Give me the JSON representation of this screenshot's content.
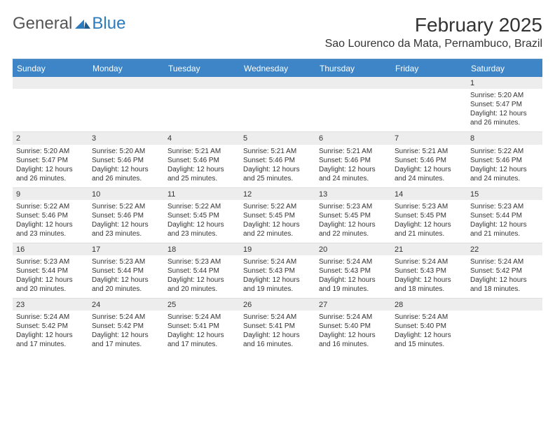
{
  "brand": {
    "general": "General",
    "blue": "Blue"
  },
  "header": {
    "title": "February 2025",
    "location": "Sao Lourenco da Mata, Pernambuco, Brazil"
  },
  "colors": {
    "header_bg": "#3d85c6",
    "header_text": "#ffffff",
    "daynum_bg": "#ededed",
    "divider": "#4a8bc6",
    "body_text": "#333333"
  },
  "dayNames": [
    "Sunday",
    "Monday",
    "Tuesday",
    "Wednesday",
    "Thursday",
    "Friday",
    "Saturday"
  ],
  "weeks": [
    [
      null,
      null,
      null,
      null,
      null,
      null,
      {
        "n": "1",
        "sr": "Sunrise: 5:20 AM",
        "ss": "Sunset: 5:47 PM",
        "dl1": "Daylight: 12 hours",
        "dl2": "and 26 minutes."
      }
    ],
    [
      {
        "n": "2",
        "sr": "Sunrise: 5:20 AM",
        "ss": "Sunset: 5:47 PM",
        "dl1": "Daylight: 12 hours",
        "dl2": "and 26 minutes."
      },
      {
        "n": "3",
        "sr": "Sunrise: 5:20 AM",
        "ss": "Sunset: 5:46 PM",
        "dl1": "Daylight: 12 hours",
        "dl2": "and 26 minutes."
      },
      {
        "n": "4",
        "sr": "Sunrise: 5:21 AM",
        "ss": "Sunset: 5:46 PM",
        "dl1": "Daylight: 12 hours",
        "dl2": "and 25 minutes."
      },
      {
        "n": "5",
        "sr": "Sunrise: 5:21 AM",
        "ss": "Sunset: 5:46 PM",
        "dl1": "Daylight: 12 hours",
        "dl2": "and 25 minutes."
      },
      {
        "n": "6",
        "sr": "Sunrise: 5:21 AM",
        "ss": "Sunset: 5:46 PM",
        "dl1": "Daylight: 12 hours",
        "dl2": "and 24 minutes."
      },
      {
        "n": "7",
        "sr": "Sunrise: 5:21 AM",
        "ss": "Sunset: 5:46 PM",
        "dl1": "Daylight: 12 hours",
        "dl2": "and 24 minutes."
      },
      {
        "n": "8",
        "sr": "Sunrise: 5:22 AM",
        "ss": "Sunset: 5:46 PM",
        "dl1": "Daylight: 12 hours",
        "dl2": "and 24 minutes."
      }
    ],
    [
      {
        "n": "9",
        "sr": "Sunrise: 5:22 AM",
        "ss": "Sunset: 5:46 PM",
        "dl1": "Daylight: 12 hours",
        "dl2": "and 23 minutes."
      },
      {
        "n": "10",
        "sr": "Sunrise: 5:22 AM",
        "ss": "Sunset: 5:46 PM",
        "dl1": "Daylight: 12 hours",
        "dl2": "and 23 minutes."
      },
      {
        "n": "11",
        "sr": "Sunrise: 5:22 AM",
        "ss": "Sunset: 5:45 PM",
        "dl1": "Daylight: 12 hours",
        "dl2": "and 23 minutes."
      },
      {
        "n": "12",
        "sr": "Sunrise: 5:22 AM",
        "ss": "Sunset: 5:45 PM",
        "dl1": "Daylight: 12 hours",
        "dl2": "and 22 minutes."
      },
      {
        "n": "13",
        "sr": "Sunrise: 5:23 AM",
        "ss": "Sunset: 5:45 PM",
        "dl1": "Daylight: 12 hours",
        "dl2": "and 22 minutes."
      },
      {
        "n": "14",
        "sr": "Sunrise: 5:23 AM",
        "ss": "Sunset: 5:45 PM",
        "dl1": "Daylight: 12 hours",
        "dl2": "and 21 minutes."
      },
      {
        "n": "15",
        "sr": "Sunrise: 5:23 AM",
        "ss": "Sunset: 5:44 PM",
        "dl1": "Daylight: 12 hours",
        "dl2": "and 21 minutes."
      }
    ],
    [
      {
        "n": "16",
        "sr": "Sunrise: 5:23 AM",
        "ss": "Sunset: 5:44 PM",
        "dl1": "Daylight: 12 hours",
        "dl2": "and 20 minutes."
      },
      {
        "n": "17",
        "sr": "Sunrise: 5:23 AM",
        "ss": "Sunset: 5:44 PM",
        "dl1": "Daylight: 12 hours",
        "dl2": "and 20 minutes."
      },
      {
        "n": "18",
        "sr": "Sunrise: 5:23 AM",
        "ss": "Sunset: 5:44 PM",
        "dl1": "Daylight: 12 hours",
        "dl2": "and 20 minutes."
      },
      {
        "n": "19",
        "sr": "Sunrise: 5:24 AM",
        "ss": "Sunset: 5:43 PM",
        "dl1": "Daylight: 12 hours",
        "dl2": "and 19 minutes."
      },
      {
        "n": "20",
        "sr": "Sunrise: 5:24 AM",
        "ss": "Sunset: 5:43 PM",
        "dl1": "Daylight: 12 hours",
        "dl2": "and 19 minutes."
      },
      {
        "n": "21",
        "sr": "Sunrise: 5:24 AM",
        "ss": "Sunset: 5:43 PM",
        "dl1": "Daylight: 12 hours",
        "dl2": "and 18 minutes."
      },
      {
        "n": "22",
        "sr": "Sunrise: 5:24 AM",
        "ss": "Sunset: 5:42 PM",
        "dl1": "Daylight: 12 hours",
        "dl2": "and 18 minutes."
      }
    ],
    [
      {
        "n": "23",
        "sr": "Sunrise: 5:24 AM",
        "ss": "Sunset: 5:42 PM",
        "dl1": "Daylight: 12 hours",
        "dl2": "and 17 minutes."
      },
      {
        "n": "24",
        "sr": "Sunrise: 5:24 AM",
        "ss": "Sunset: 5:42 PM",
        "dl1": "Daylight: 12 hours",
        "dl2": "and 17 minutes."
      },
      {
        "n": "25",
        "sr": "Sunrise: 5:24 AM",
        "ss": "Sunset: 5:41 PM",
        "dl1": "Daylight: 12 hours",
        "dl2": "and 17 minutes."
      },
      {
        "n": "26",
        "sr": "Sunrise: 5:24 AM",
        "ss": "Sunset: 5:41 PM",
        "dl1": "Daylight: 12 hours",
        "dl2": "and 16 minutes."
      },
      {
        "n": "27",
        "sr": "Sunrise: 5:24 AM",
        "ss": "Sunset: 5:40 PM",
        "dl1": "Daylight: 12 hours",
        "dl2": "and 16 minutes."
      },
      {
        "n": "28",
        "sr": "Sunrise: 5:24 AM",
        "ss": "Sunset: 5:40 PM",
        "dl1": "Daylight: 12 hours",
        "dl2": "and 15 minutes."
      },
      null
    ]
  ]
}
